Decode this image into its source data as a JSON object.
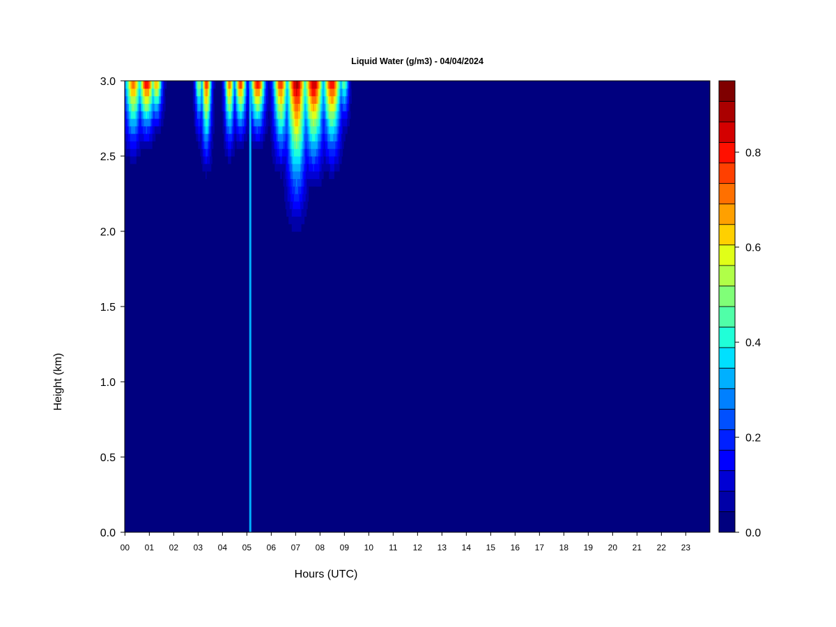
{
  "chart_data": {
    "type": "heatmap",
    "title": "Liquid Water (g/m3) - 04/04/2024",
    "xlabel": "Hours (UTC)",
    "ylabel": "Height (km)",
    "x_ticks": [
      "00",
      "01",
      "02",
      "03",
      "04",
      "05",
      "06",
      "07",
      "08",
      "09",
      "10",
      "11",
      "12",
      "13",
      "14",
      "15",
      "16",
      "17",
      "18",
      "19",
      "20",
      "21",
      "22",
      "23"
    ],
    "x_range_hours": [
      0,
      24
    ],
    "y_ticks": [
      "0.0",
      "0.5",
      "1.0",
      "1.5",
      "2.0",
      "2.5",
      "3.0"
    ],
    "y_range_km": [
      0,
      3
    ],
    "colorbar": {
      "range": [
        0,
        0.95
      ],
      "ticks": [
        "0.0",
        "0.2",
        "0.4",
        "0.6",
        "0.8"
      ],
      "tick_values": [
        0,
        0.2,
        0.4,
        0.6,
        0.8
      ],
      "levels": 19,
      "colors": [
        "#00007f",
        "#0000a8",
        "#0000d4",
        "#0000ff",
        "#0020ff",
        "#0050ff",
        "#0080ff",
        "#00b0ff",
        "#00e0ff",
        "#20ffd8",
        "#50ffa8",
        "#80ff78",
        "#b0ff48",
        "#e0ff18",
        "#ffd000",
        "#ffa000",
        "#ff7000",
        "#ff4000",
        "#ff1000",
        "#d40000",
        "#aa0000",
        "#7f0000"
      ]
    },
    "background_value": 0.0,
    "features": [
      {
        "hour": 0.35,
        "width": 0.5,
        "peak": 0.75,
        "base_km": 2.4
      },
      {
        "hour": 0.9,
        "width": 0.5,
        "peak": 0.85,
        "base_km": 2.5
      },
      {
        "hour": 1.3,
        "width": 0.35,
        "peak": 0.7,
        "base_km": 2.6
      },
      {
        "hour": 3.05,
        "width": 0.25,
        "peak": 0.55,
        "base_km": 2.5
      },
      {
        "hour": 3.35,
        "width": 0.3,
        "peak": 0.8,
        "base_km": 2.3
      },
      {
        "hour": 4.3,
        "width": 0.3,
        "peak": 0.75,
        "base_km": 2.4
      },
      {
        "hour": 4.75,
        "width": 0.35,
        "peak": 0.8,
        "base_km": 2.5
      },
      {
        "hour": 5.45,
        "width": 0.45,
        "peak": 0.85,
        "base_km": 2.5
      },
      {
        "hour": 6.4,
        "width": 0.45,
        "peak": 0.8,
        "base_km": 2.3
      },
      {
        "hour": 7.05,
        "width": 0.6,
        "peak": 0.9,
        "base_km": 1.9
      },
      {
        "hour": 7.75,
        "width": 0.6,
        "peak": 0.9,
        "base_km": 2.2
      },
      {
        "hour": 8.5,
        "width": 0.55,
        "peak": 0.85,
        "base_km": 2.3
      },
      {
        "hour": 9.0,
        "width": 0.3,
        "peak": 0.5,
        "base_km": 2.6
      }
    ],
    "column_feature": {
      "hour": 5.15,
      "value": 0.33,
      "from_km": 0,
      "to_km": 3
    }
  }
}
